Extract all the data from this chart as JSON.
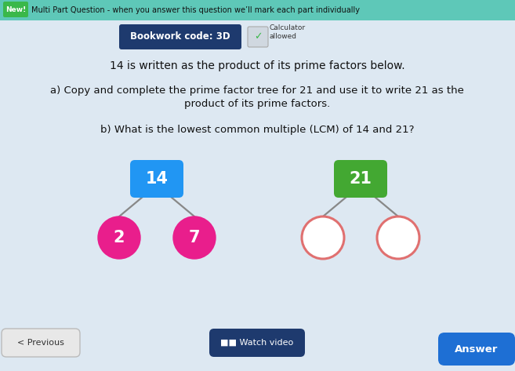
{
  "background_color": "#dce8f0",
  "content_bg_color": "#e8f0f5",
  "top_banner_color": "#5ec8b8",
  "new_badge_color": "#3ab84a",
  "new_badge_text": "New!",
  "banner_text": "Multi Part Question - when you answer this question we’ll mark each part individually",
  "banner_text_color": "#1a1a2e",
  "bookwork_box_color": "#1e3a6e",
  "bookwork_text": "Bookwork code: 3D",
  "calc_text": "Calculator\nallowed",
  "line1": "14 is written as the product of its prime factors below.",
  "line2a": "a) Copy and complete the prime factor tree for 21 and use it to write 21 as the",
  "line2b": "product of its prime factors.",
  "line3": "b) What is the lowest common multiple (LCM) of 14 and 21?",
  "tree14_root_label": "14",
  "tree14_root_color": "#2196F3",
  "tree14_left_label": "2",
  "tree14_left_color": "#e91e8c",
  "tree14_right_label": "7",
  "tree14_right_color": "#e91e8c",
  "tree21_root_label": "21",
  "tree21_root_color": "#43a832",
  "tree21_left_color": "#ffffff",
  "tree21_right_color": "#ffffff",
  "tree21_circle_edge_color": "#e07070",
  "line_color": "#888888",
  "prev_button_text": "< Previous",
  "watch_button_text": "■■ Watch video",
  "answer_button_text": "Answer",
  "answer_button_color": "#1e6fd4",
  "prev_button_color": "#e8e8e8",
  "watch_button_color": "#1e3a6e",
  "fig_width": 6.57,
  "fig_height": 4.73,
  "dpi": 100
}
